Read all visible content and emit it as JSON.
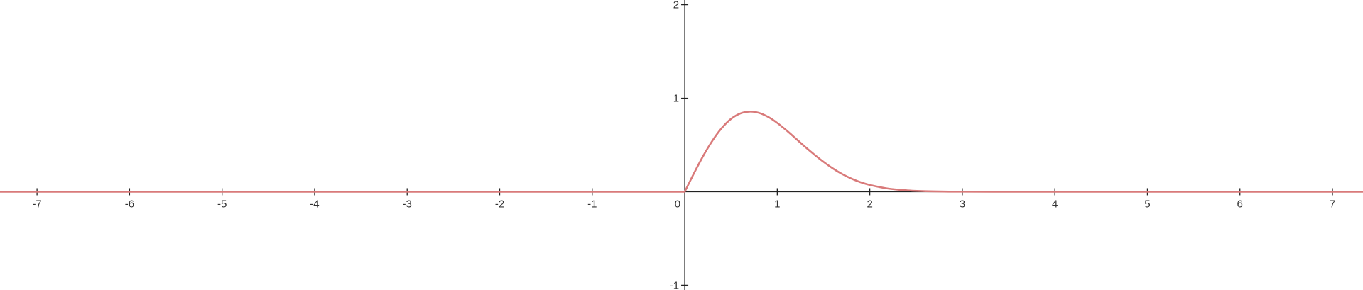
{
  "chart_data": {
    "type": "line",
    "title": "",
    "xlabel": "",
    "ylabel": "",
    "xlim": [
      -7.4,
      7.33
    ],
    "ylim": [
      -1.05,
      2.05
    ],
    "grid": false,
    "x_ticks": [
      -7,
      -6,
      -5,
      -4,
      -3,
      -2,
      -1,
      0,
      1,
      2,
      3,
      4,
      5,
      6,
      7
    ],
    "y_ticks": [
      -1,
      1,
      2
    ],
    "x_tick_labels": [
      "-7",
      "-6",
      "-5",
      "-4",
      "-3",
      "-2",
      "-1",
      "0",
      "1",
      "2",
      "3",
      "4",
      "5",
      "6",
      "7"
    ],
    "y_tick_labels": [
      "-1",
      "1",
      "2"
    ],
    "origin_label": "0",
    "series": [
      {
        "color": "#d97a7a",
        "x": [
          -7.4,
          0,
          0.1,
          0.2,
          0.3,
          0.4,
          0.5,
          0.6,
          0.7,
          0.8,
          0.9,
          1.0,
          1.1,
          1.2,
          1.3,
          1.4,
          1.5,
          1.6,
          1.7,
          1.8,
          1.9,
          2.0,
          2.2,
          2.4,
          2.6,
          2.8,
          3.0,
          3.5,
          4.0,
          5.0,
          6.0,
          7.0,
          7.33
        ],
        "y": [
          0,
          0,
          0.198,
          0.384,
          0.547,
          0.681,
          0.779,
          0.837,
          0.857,
          0.844,
          0.801,
          0.736,
          0.656,
          0.569,
          0.481,
          0.398,
          0.32,
          0.25,
          0.19,
          0.141,
          0.102,
          0.073,
          0.034,
          0.015,
          0.006,
          0.002,
          0.001,
          0.0,
          0,
          0,
          0,
          0,
          0
        ]
      }
    ]
  }
}
